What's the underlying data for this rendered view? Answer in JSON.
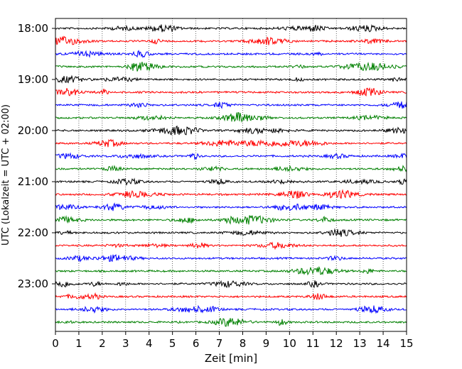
{
  "chart_data": {
    "type": "line",
    "title": "",
    "xlabel": "Zeit  [min]",
    "ylabel": "UTC (Lokalzeit = UTC + 02:00)",
    "xlim": [
      0,
      15
    ],
    "x_ticks": [
      "0",
      "1",
      "2",
      "3",
      "4",
      "5",
      "6",
      "7",
      "8",
      "9",
      "10",
      "11",
      "12",
      "13",
      "14",
      "15"
    ],
    "y_tick_labels": [
      "18:00",
      "19:00",
      "20:00",
      "21:00",
      "22:00",
      "23:00"
    ],
    "row_start_times": [
      "18:00",
      "18:15",
      "18:30",
      "18:45",
      "19:00",
      "19:15",
      "19:30",
      "19:45",
      "20:00",
      "20:15",
      "20:30",
      "20:45",
      "21:00",
      "21:15",
      "21:30",
      "21:45",
      "22:00",
      "22:15",
      "22:30",
      "22:45",
      "23:00",
      "23:15",
      "23:30",
      "23:45"
    ],
    "minutes_per_row": 15,
    "trace_colors": [
      "#000000",
      "#ff0000",
      "#0000ff",
      "#008000"
    ],
    "grid": "vertical dotted lines at each minute",
    "legend": "none"
  }
}
